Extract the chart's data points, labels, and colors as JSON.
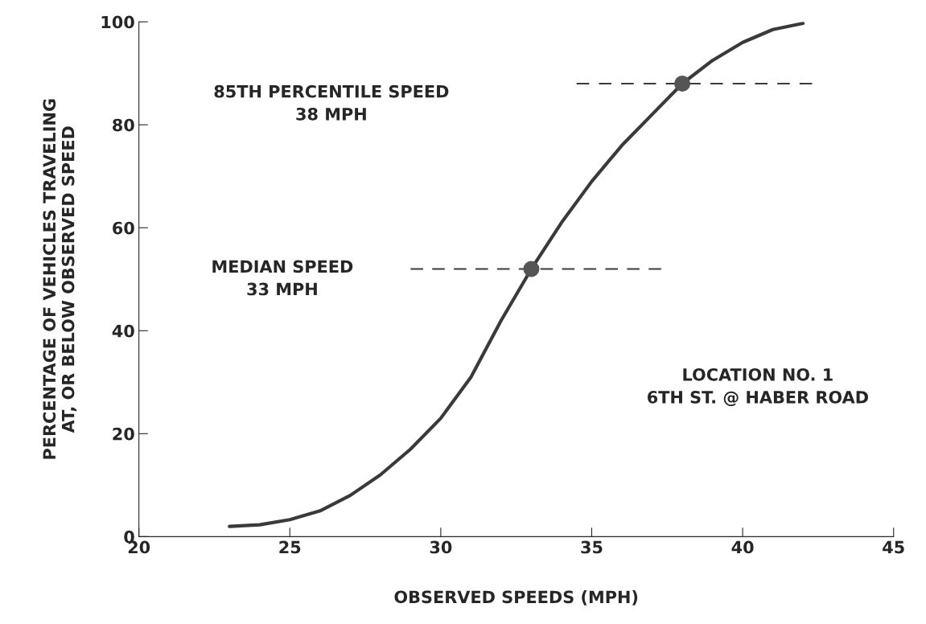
{
  "chart_data": {
    "type": "line",
    "xlabel": "OBSERVED SPEEDS (MPH)",
    "ylabel": "PERCENTAGE OF VEHICLES TRAVELING\nAT, OR BELOW OBSERVED SPEED",
    "xlim": [
      20,
      45
    ],
    "ylim": [
      0,
      100
    ],
    "xticks": [
      20,
      25,
      30,
      35,
      40,
      45
    ],
    "yticks": [
      0,
      20,
      40,
      60,
      80,
      100
    ],
    "grid": false,
    "legend": false,
    "series": [
      {
        "color": "#3a3a3a",
        "line_style": "solid",
        "marker": "none",
        "x": [
          23,
          24,
          25,
          26,
          27,
          28,
          29,
          30,
          31,
          32,
          33,
          34,
          35,
          36,
          37,
          38,
          39,
          40,
          41,
          42
        ],
        "values": [
          2,
          2.3,
          3.3,
          5,
          8,
          12,
          17,
          23,
          31,
          42,
          52,
          61,
          69,
          76,
          82,
          88,
          92.5,
          96,
          98.5,
          99.7
        ]
      },
      {
        "color": "#3a3a3a",
        "line_style": "dashed",
        "marker": "none",
        "x": [
          29,
          37.3
        ],
        "values": [
          52,
          52
        ]
      },
      {
        "color": "#3a3a3a",
        "line_style": "dashed",
        "marker": "none",
        "x": [
          34.5,
          42.3
        ],
        "values": [
          88,
          88
        ]
      },
      {
        "type": "scatter",
        "color": "#555555",
        "marker": "circle",
        "x": [
          33,
          38
        ],
        "values": [
          52,
          88
        ]
      }
    ],
    "annotations": [
      "85TH PERCENTILE SPEED\n38 MPH",
      "MEDIAN SPEED\n33 MPH",
      "LOCATION NO. 1\n6TH ST. @ HABER ROAD"
    ]
  }
}
